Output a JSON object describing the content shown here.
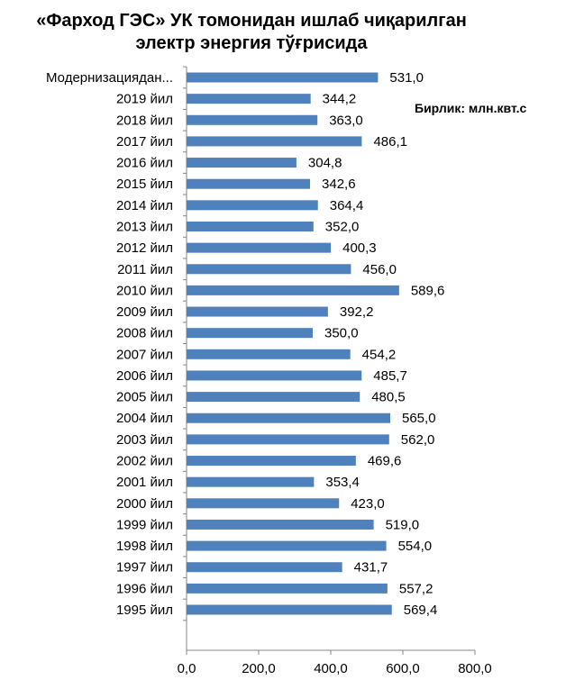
{
  "title_line1": "«Фарход ГЭС» УК томонидан ишлаб чиқарилган",
  "title_line2": "электр энергия тўғрисида",
  "unit_label": "Бирлик: млн.квт.с",
  "chart_data": {
    "type": "bar",
    "orientation": "horizontal",
    "categories": [
      "Модернизациядан...",
      "2019 йил",
      "2018 йил",
      "2017 йил",
      "2016 йил",
      "2015 йил",
      "2014 йил",
      "2013 йил",
      "2012 йил",
      "2011 йил",
      "2010 йил",
      "2009 йил",
      "2008 йил",
      "2007 йил",
      "2006 йил",
      "2005 йил",
      "2004 йил",
      "2003 йил",
      "2002 йил",
      "2001 йил",
      "2000 йил",
      "1999 йил",
      "1998 йил",
      "1997 йил",
      "1996 йил",
      "1995 йил"
    ],
    "values": [
      531.0,
      344.2,
      363.0,
      486.1,
      304.8,
      342.6,
      364.4,
      352.0,
      400.3,
      456.0,
      589.6,
      392.2,
      350.0,
      454.2,
      485.7,
      480.5,
      565.0,
      562.0,
      469.6,
      353.4,
      423.0,
      519.0,
      554.0,
      431.7,
      557.2,
      569.4
    ],
    "value_labels": [
      "531,0",
      "344,2",
      "363,0",
      "486,1",
      "304,8",
      "342,6",
      "364,4",
      "352,0",
      "400,3",
      "456,0",
      "589,6",
      "392,2",
      "350,0",
      "454,2",
      "485,7",
      "480,5",
      "565,0",
      "562,0",
      "469,6",
      "353,4",
      "423,0",
      "519,0",
      "554,0",
      "431,7",
      "557,2",
      "569,4"
    ],
    "xlim": [
      0,
      800
    ],
    "xticks": [
      0,
      200,
      400,
      600,
      800
    ],
    "xtick_labels": [
      "0,0",
      "200,0",
      "400,0",
      "600,0",
      "800,0"
    ],
    "grid": false,
    "bar_color": "#4f81bd"
  }
}
